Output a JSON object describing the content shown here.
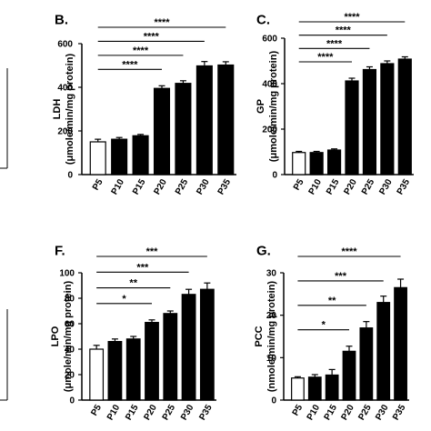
{
  "chart_data": [
    {
      "type": "bar",
      "panel_label": "B.",
      "ylabel": "LDH",
      "ylabel2": "(μmole/min/mg protein)",
      "categories": [
        "P5",
        "P10",
        "P15",
        "P20",
        "P25",
        "P30",
        "P35"
      ],
      "values": [
        150,
        162,
        178,
        395,
        418,
        498,
        502
      ],
      "errors": [
        12,
        8,
        6,
        12,
        12,
        20,
        15
      ],
      "ylim": [
        0,
        600
      ],
      "yticks": [
        "0",
        "200",
        "400",
        "600"
      ],
      "bar_fills": [
        "#ffffff",
        "#000000",
        "#000000",
        "#000000",
        "#000000",
        "#000000",
        "#000000"
      ],
      "significance": [
        {
          "from": 0,
          "to": 3,
          "label": "****"
        },
        {
          "from": 0,
          "to": 4,
          "label": "****"
        },
        {
          "from": 0,
          "to": 5,
          "label": "****"
        },
        {
          "from": 0,
          "to": 6,
          "label": "****"
        }
      ]
    },
    {
      "type": "bar",
      "panel_label": "C.",
      "ylabel": "GP",
      "ylabel2": "(μmole/min/mg protein)",
      "categories": [
        "P5",
        "P10",
        "P15",
        "P20",
        "P25",
        "P30",
        "P35"
      ],
      "values": [
        97,
        97,
        108,
        412,
        462,
        488,
        508
      ],
      "errors": [
        5,
        5,
        5,
        12,
        12,
        12,
        10
      ],
      "ylim": [
        0,
        600
      ],
      "yticks": [
        "0",
        "200",
        "400",
        "600"
      ],
      "bar_fills": [
        "#ffffff",
        "#000000",
        "#000000",
        "#000000",
        "#000000",
        "#000000",
        "#000000"
      ],
      "significance": [
        {
          "from": 0,
          "to": 3,
          "label": "****"
        },
        {
          "from": 0,
          "to": 4,
          "label": "****"
        },
        {
          "from": 0,
          "to": 5,
          "label": "****"
        },
        {
          "from": 0,
          "to": 6,
          "label": "****"
        }
      ]
    },
    {
      "type": "bar",
      "panel_label": "F.",
      "ylabel": "LPO",
      "ylabel2": "(μmole/min/mg protein)",
      "categories": [
        "P5",
        "P10",
        "P15",
        "P20",
        "P25",
        "P30",
        "P35"
      ],
      "values": [
        40,
        46,
        48,
        61,
        68,
        83,
        87
      ],
      "errors": [
        3,
        2,
        2,
        2,
        2,
        4,
        5
      ],
      "ylim": [
        0,
        100
      ],
      "yticks": [
        "0",
        "20",
        "40",
        "60",
        "80",
        "100"
      ],
      "bar_fills": [
        "#ffffff",
        "#000000",
        "#000000",
        "#000000",
        "#000000",
        "#000000",
        "#000000"
      ],
      "significance": [
        {
          "from": 0,
          "to": 3,
          "label": "*"
        },
        {
          "from": 0,
          "to": 4,
          "label": "**"
        },
        {
          "from": 0,
          "to": 5,
          "label": "***"
        },
        {
          "from": 0,
          "to": 6,
          "label": "***"
        }
      ]
    },
    {
      "type": "bar",
      "panel_label": "G.",
      "ylabel": "PCC",
      "ylabel2": "(nmole/min/mg protein)",
      "categories": [
        "P5",
        "P10",
        "P15",
        "P20",
        "P25",
        "P30",
        "P35"
      ],
      "values": [
        5.2,
        5.4,
        5.9,
        11.5,
        17,
        23,
        26.5
      ],
      "errors": [
        0.3,
        0.6,
        1.3,
        1.2,
        1.5,
        1.5,
        2
      ],
      "ylim": [
        0,
        30
      ],
      "yticks": [
        "0",
        "10",
        "20",
        "30"
      ],
      "bar_fills": [
        "#ffffff",
        "#000000",
        "#000000",
        "#000000",
        "#000000",
        "#000000",
        "#000000"
      ],
      "significance": [
        {
          "from": 0,
          "to": 3,
          "label": "*"
        },
        {
          "from": 0,
          "to": 4,
          "label": "**"
        },
        {
          "from": 0,
          "to": 5,
          "label": "***"
        },
        {
          "from": 0,
          "to": 6,
          "label": "****"
        }
      ]
    }
  ]
}
